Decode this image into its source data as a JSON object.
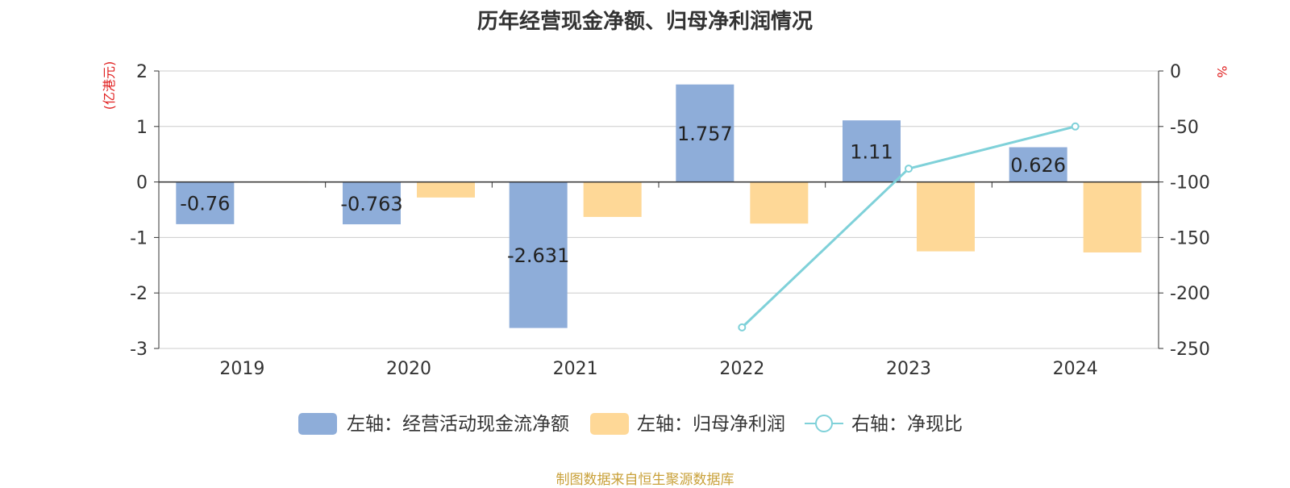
{
  "chart_data": {
    "type": "bar",
    "title": "历年经营现金净额、归母净利润情况",
    "categories": [
      "2019",
      "2020",
      "2021",
      "2022",
      "2023",
      "2024"
    ],
    "series": [
      {
        "name": "左轴：经营活动现金流净额",
        "axis": "left",
        "kind": "bar",
        "color": "#8eadd9",
        "values": [
          -0.76,
          -0.763,
          -2.631,
          1.757,
          1.11,
          0.626
        ],
        "labels": [
          "-0.76",
          "-0.763",
          "-2.631",
          "1.757",
          "1.11",
          "0.626"
        ]
      },
      {
        "name": "左轴：归母净利润",
        "axis": "left",
        "kind": "bar",
        "color": "#fed897",
        "values": [
          0.01,
          -0.28,
          -0.63,
          -0.75,
          -1.25,
          -1.27
        ]
      },
      {
        "name": "右轴：净现比",
        "axis": "right",
        "kind": "line",
        "color": "#7fd1d9",
        "values": [
          null,
          null,
          null,
          -231,
          -88,
          -50
        ]
      }
    ],
    "left_axis": {
      "unit": "(亿港元)",
      "ticks": [
        "2",
        "1",
        "0",
        "-1",
        "-2",
        "-3"
      ],
      "ylim": [
        -3,
        2
      ]
    },
    "right_axis": {
      "unit": "%",
      "ticks": [
        "0",
        "-50",
        "-100",
        "-150",
        "-200",
        "-250"
      ],
      "ylim": [
        -250,
        0
      ]
    },
    "grid": true,
    "legend_position": "bottom"
  },
  "footer": {
    "text": "制图数据来自恒生聚源数据库",
    "color": "#c9a13a"
  },
  "colors": {
    "axis": "#333333",
    "grid": "#cccccc",
    "unit_left": "#e02020",
    "unit_right": "#e02020"
  }
}
